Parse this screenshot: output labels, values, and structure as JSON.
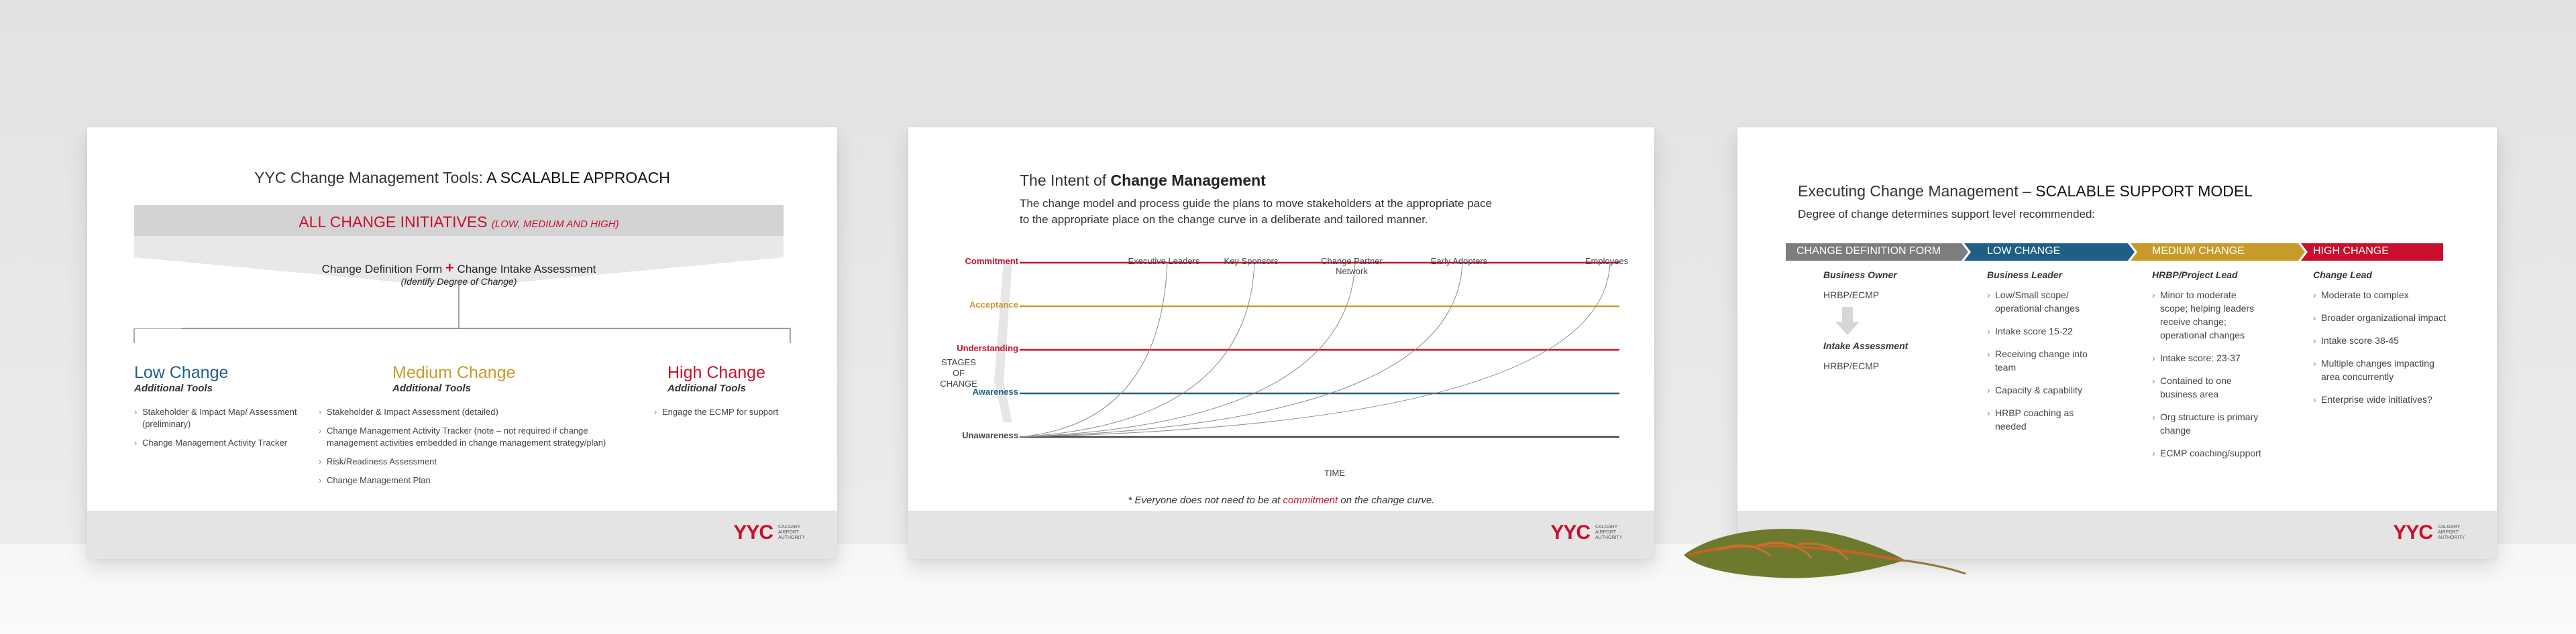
{
  "colors": {
    "red": "#c8102e",
    "blue": "#1f5f86",
    "gold": "#c89a2a",
    "grey": "#7d7d7d"
  },
  "logo": {
    "mark": "YYC",
    "sub": "CALGARY AIRPORT AUTHORITY"
  },
  "card1": {
    "title_prefix": "YYC Change Management Tools: ",
    "title_bold": "A SCALABLE APPROACH",
    "banner_main": "ALL CHANGE INITIATIVES",
    "banner_sub": "(LOW, MEDIUM AND HIGH)",
    "form_a": "Change Definition Form",
    "plus": "+",
    "form_b": "Change Intake Assessment",
    "form_note": "(Identify Degree of Change)",
    "low": {
      "title": "Low Change",
      "sub": "Additional Tools",
      "items": [
        "Stakeholder & Impact Map/ Assessment (preliminary)",
        "Change Management Activity Tracker"
      ]
    },
    "medium": {
      "title": "Medium Change",
      "sub": "Additional Tools",
      "items": [
        "Stakeholder & Impact Assessment (detailed)",
        "Change Management Activity Tracker (note – not required if change management activities embedded in change management strategy/plan)",
        "Risk/Readiness Assessment",
        "Change Management Plan"
      ]
    },
    "high": {
      "title": "High Change",
      "sub": "Additional Tools",
      "items": [
        "Engage the ECMP for support"
      ]
    }
  },
  "card2": {
    "title_prefix": "The Intent of ",
    "title_bold": "Change Management",
    "intro_1": "The change model and process guide the plans to move stakeholders at the appropriate pace",
    "intro_2": "to the appropriate place on the change curve in a deliberate and tailored manner.",
    "stages_label": "STAGES OF CHANGE",
    "time_label": "TIME",
    "stages": [
      {
        "name": "Commitment",
        "color": "#c8102e"
      },
      {
        "name": "Acceptance",
        "color": "#c89a2a"
      },
      {
        "name": "Understanding",
        "color": "#c8102e"
      },
      {
        "name": "Awareness",
        "color": "#1f5f86"
      },
      {
        "name": "Unawareness",
        "color": "#444444"
      }
    ],
    "groups": [
      "Executive Leaders",
      "Key Sponsors",
      "Change Partner Network",
      "Early Adopters",
      "Employees"
    ],
    "footnote_a": "* Everyone does not need to be at ",
    "footnote_b": "commitment",
    "footnote_c": " on the change curve."
  },
  "card3": {
    "title_prefix": "Executing Change Management – ",
    "title_bold": "SCALABLE SUPPORT MODEL",
    "subtitle": "Degree of change determines support level recommended:",
    "chevrons": [
      "CHANGE DEFINITION FORM",
      "LOW CHANGE",
      "MEDIUM CHANGE",
      "HIGH CHANGE"
    ],
    "def_col": {
      "h1": "Business Owner",
      "t1": "HRBP/ECMP",
      "h2": "Intake Assessment",
      "t2": "HRBP/ECMP"
    },
    "low_col": {
      "head": "Business Leader",
      "items": [
        "Low/Small scope/ operational changes",
        "Intake score 15-22",
        "Receiving change into team",
        "Capacity & capability",
        "HRBP coaching as needed"
      ]
    },
    "med_col": {
      "head": "HRBP/Project Lead",
      "items": [
        "Minor to moderate scope; helping leaders receive change; operational changes",
        "Intake score: 23-37",
        "Contained to one business area",
        "Org structure is primary change",
        "ECMP coaching/support"
      ]
    },
    "high_col": {
      "head": "Change Lead",
      "items": [
        "Moderate to complex",
        "Broader organizational impact",
        "Intake score 38-45",
        "Multiple changes impacting area concurrently",
        "Enterprise wide initiatives?"
      ]
    }
  }
}
